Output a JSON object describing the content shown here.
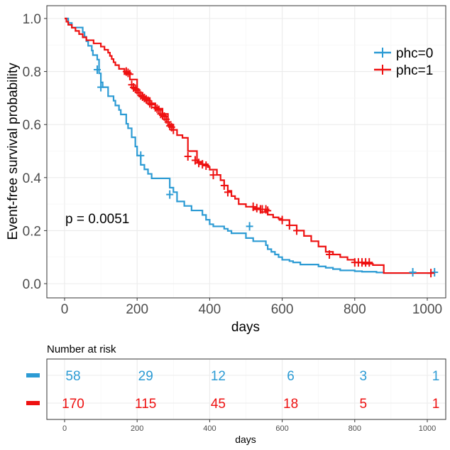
{
  "chart_data": {
    "type": "line",
    "step": true,
    "ylabel": "Event-free survival probability",
    "xlabel": "days",
    "xlim": [
      0,
      1000
    ],
    "ylim": [
      0,
      1
    ],
    "x_ticks": [
      "0",
      "200",
      "400",
      "600",
      "800",
      "1000"
    ],
    "y_ticks": [
      "0.0",
      "0.2",
      "0.4",
      "0.6",
      "0.8",
      "1.0"
    ],
    "annotation": "p = 0.0051",
    "legend_position": "top-right",
    "grid": true,
    "series": [
      {
        "name": "phc=0",
        "color": "#2c9bd4",
        "x": [
          0,
          10,
          20,
          50,
          55,
          60,
          65,
          75,
          78,
          90,
          95,
          100,
          105,
          120,
          135,
          140,
          150,
          155,
          170,
          175,
          185,
          195,
          200,
          210,
          220,
          230,
          240,
          290,
          300,
          310,
          330,
          350,
          380,
          390,
          400,
          410,
          440,
          450,
          460,
          500,
          520,
          555,
          560,
          570,
          580,
          590,
          600,
          620,
          630,
          650,
          700,
          720,
          740,
          760,
          800,
          820,
          860,
          880,
          1020
        ],
        "y": [
          1.0,
          0.983,
          0.966,
          0.948,
          0.931,
          0.914,
          0.897,
          0.879,
          0.862,
          0.845,
          0.793,
          0.759,
          0.741,
          0.707,
          0.69,
          0.672,
          0.655,
          0.638,
          0.603,
          0.586,
          0.552,
          0.517,
          0.483,
          0.448,
          0.431,
          0.414,
          0.397,
          0.362,
          0.345,
          0.31,
          0.293,
          0.276,
          0.259,
          0.241,
          0.224,
          0.216,
          0.207,
          0.199,
          0.19,
          0.172,
          0.16,
          0.145,
          0.13,
          0.12,
          0.11,
          0.1,
          0.09,
          0.085,
          0.08,
          0.072,
          0.065,
          0.06,
          0.055,
          0.05,
          0.047,
          0.045,
          0.042,
          0.04,
          0.04
        ],
        "censored_x": [
          90,
          100,
          210,
          290,
          510,
          960,
          1020
        ],
        "censored_y": [
          0.807,
          0.741,
          0.483,
          0.336,
          0.216,
          0.043,
          0.043
        ]
      },
      {
        "name": "phc=1",
        "color": "#ee1111",
        "x": [
          0,
          5,
          10,
          20,
          30,
          40,
          50,
          60,
          80,
          100,
          110,
          120,
          125,
          130,
          135,
          140,
          150,
          165,
          180,
          200,
          215,
          235,
          250,
          270,
          285,
          300,
          310,
          325,
          340,
          365,
          380,
          395,
          400,
          420,
          430,
          440,
          450,
          460,
          470,
          480,
          500,
          520,
          540,
          560,
          575,
          590,
          600,
          620,
          640,
          660,
          680,
          700,
          720,
          740,
          760,
          780,
          800,
          820,
          850,
          880,
          1000,
          1010
        ],
        "y": [
          1.0,
          0.988,
          0.976,
          0.965,
          0.953,
          0.941,
          0.929,
          0.918,
          0.906,
          0.894,
          0.882,
          0.871,
          0.859,
          0.847,
          0.835,
          0.824,
          0.81,
          0.79,
          0.77,
          0.72,
          0.7,
          0.68,
          0.66,
          0.64,
          0.6,
          0.58,
          0.56,
          0.55,
          0.5,
          0.46,
          0.45,
          0.44,
          0.43,
          0.41,
          0.39,
          0.37,
          0.35,
          0.33,
          0.32,
          0.3,
          0.29,
          0.28,
          0.27,
          0.26,
          0.25,
          0.245,
          0.24,
          0.22,
          0.2,
          0.18,
          0.16,
          0.14,
          0.12,
          0.11,
          0.1,
          0.09,
          0.08,
          0.075,
          0.07,
          0.04,
          0.04,
          0.04
        ],
        "censored_x": [
          170,
          175,
          180,
          185,
          190,
          195,
          200,
          205,
          210,
          215,
          220,
          225,
          230,
          235,
          240,
          250,
          255,
          260,
          265,
          270,
          275,
          280,
          285,
          290,
          295,
          300,
          340,
          360,
          370,
          380,
          390,
          410,
          440,
          450,
          520,
          530,
          540,
          545,
          555,
          560,
          600,
          620,
          640,
          730,
          800,
          810,
          820,
          830,
          840,
          1010
        ],
        "censored_y": [
          0.8,
          0.795,
          0.79,
          0.75,
          0.74,
          0.735,
          0.73,
          0.72,
          0.71,
          0.705,
          0.7,
          0.695,
          0.69,
          0.68,
          0.675,
          0.665,
          0.66,
          0.655,
          0.64,
          0.635,
          0.63,
          0.62,
          0.61,
          0.595,
          0.59,
          0.58,
          0.48,
          0.465,
          0.455,
          0.45,
          0.445,
          0.41,
          0.37,
          0.345,
          0.29,
          0.285,
          0.28,
          0.28,
          0.28,
          0.275,
          0.24,
          0.22,
          0.2,
          0.11,
          0.08,
          0.08,
          0.08,
          0.08,
          0.08,
          0.04
        ]
      }
    ]
  },
  "risk_table": {
    "title": "Number at risk",
    "xlabel": "days",
    "x_ticks": [
      "0",
      "200",
      "400",
      "600",
      "800",
      "1000"
    ],
    "rows": [
      {
        "color": "#2c9bd4",
        "values": [
          "58",
          "29",
          "12",
          "6",
          "3",
          "1"
        ]
      },
      {
        "color": "#ee1111",
        "values": [
          "170",
          "115",
          "45",
          "18",
          "5",
          "1"
        ]
      }
    ]
  }
}
